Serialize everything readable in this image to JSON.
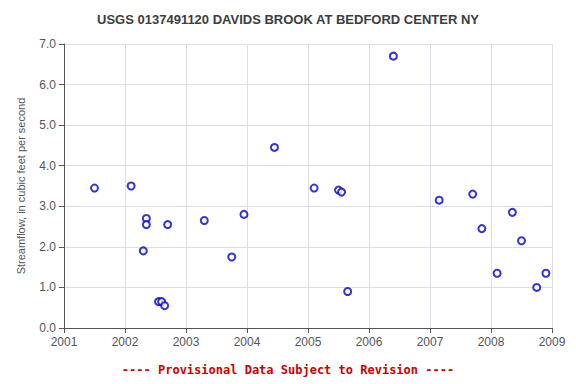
{
  "chart_data": {
    "type": "scatter",
    "title": "USGS 0137491120 DAVIDS BROOK AT BEDFORD CENTER NY",
    "y_label": "Streamflow, in cubic feet per second",
    "annotations": [
      {
        "text": "---- Provisional Data Subject to Revision ----",
        "color": "#cc0000"
      }
    ],
    "x": [
      2001.5,
      2002.1,
      2002.3,
      2002.35,
      2002.35,
      2002.55,
      2002.6,
      2002.65,
      2002.7,
      2003.3,
      2003.75,
      2003.95,
      2004.45,
      2005.1,
      2005.5,
      2005.55,
      2005.65,
      2006.4,
      2007.15,
      2007.7,
      2007.85,
      2008.1,
      2008.35,
      2008.5,
      2008.75,
      2008.9
    ],
    "values": [
      3.45,
      3.5,
      1.9,
      2.7,
      2.55,
      0.65,
      0.65,
      0.55,
      2.55,
      2.65,
      1.75,
      2.8,
      4.45,
      3.45,
      3.4,
      3.35,
      0.9,
      6.7,
      3.15,
      3.3,
      2.45,
      1.35,
      2.85,
      2.15,
      1.0,
      1.35
    ],
    "color": "#0000cc",
    "marker": "circle",
    "xlim": [
      2001,
      2009
    ],
    "xticks": [
      2001,
      2002,
      2003,
      2004,
      2005,
      2006,
      2007,
      2008,
      2009
    ],
    "ylim": [
      0.0,
      7.0
    ],
    "yticks": [
      {
        "value": 0.0,
        "label": "0.0"
      },
      {
        "value": 1.0,
        "label": "1.0"
      },
      {
        "value": 2.0,
        "label": "2.0"
      },
      {
        "value": 3.0,
        "label": "3.0"
      },
      {
        "value": 4.0,
        "label": "4.0"
      },
      {
        "value": 5.0,
        "label": "5.0"
      },
      {
        "value": 6.0,
        "label": "6.0"
      },
      {
        "value": 7.0,
        "label": "7.0"
      }
    ],
    "grid": true
  }
}
